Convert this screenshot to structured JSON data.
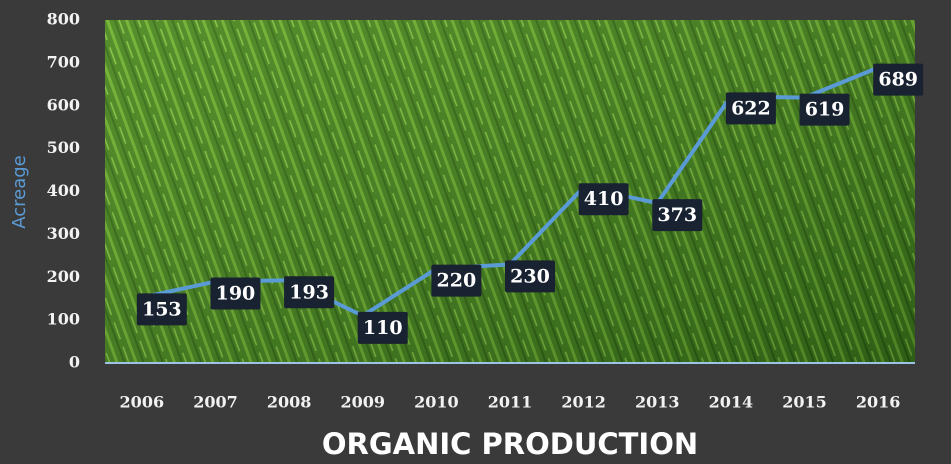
{
  "chart_data": {
    "type": "line",
    "title": "ORGANIC PRODUCTION",
    "y_label": "Acreage",
    "categories": [
      "2006",
      "2007",
      "2008",
      "2009",
      "2010",
      "2011",
      "2012",
      "2013",
      "2014",
      "2015",
      "2016"
    ],
    "values": [
      153,
      190,
      193,
      110,
      220,
      230,
      410,
      373,
      622,
      619,
      689
    ],
    "color": "#5b9bd5",
    "ylim": [
      0,
      800
    ],
    "yticks": [
      0,
      100,
      200,
      300,
      400,
      500,
      600,
      700,
      800
    ]
  }
}
